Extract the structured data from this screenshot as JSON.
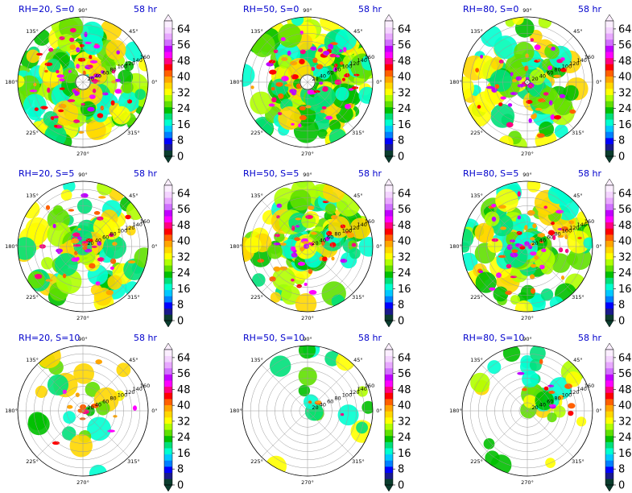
{
  "chart_data": {
    "type": "heatmap",
    "projection": "polar",
    "grid": true,
    "time_label": "58 hr",
    "angle_labels": [
      "90°",
      "45°",
      "0°",
      "315°",
      "270°",
      "225°",
      "180°",
      "135°"
    ],
    "radial_labels": [
      "20",
      "40",
      "60",
      "80",
      "100",
      "120",
      "140",
      "160"
    ],
    "colorbar": {
      "ticks": [
        "0",
        "8",
        "16",
        "24",
        "32",
        "40",
        "48",
        "56",
        "64"
      ],
      "range": [
        0,
        68
      ],
      "extend": "both",
      "colors": [
        "#0b3d2e",
        "#1a1a8c",
        "#0000ff",
        "#0080ff",
        "#00c8ff",
        "#00ffd0",
        "#00e07a",
        "#00c000",
        "#60e000",
        "#b0ff00",
        "#ffff00",
        "#ffd700",
        "#ffa500",
        "#ff6000",
        "#ff0000",
        "#ff0080",
        "#ff00ff",
        "#c000ff",
        "#d070ff",
        "#e8a8ff",
        "#f4d4ff",
        "#fbeeff"
      ]
    },
    "panels": [
      {
        "title": "RH=20, S=0",
        "time": "58 hr",
        "coverage": 0.95,
        "intensity": 0.65,
        "inner_hole": 0.14,
        "sector": null
      },
      {
        "title": "RH=50, S=0",
        "time": "58 hr",
        "coverage": 1.0,
        "intensity": 0.55,
        "inner_hole": 0.14,
        "sector": null
      },
      {
        "title": "RH=80, S=0",
        "time": "58 hr",
        "coverage": 0.7,
        "intensity": 0.75,
        "inner_hole": 0.05,
        "sector": null
      },
      {
        "title": "RH=20, S=5",
        "time": "58 hr",
        "coverage": 0.7,
        "intensity": 0.55,
        "inner_hole": 0.0,
        "sector": null
      },
      {
        "title": "RH=50, S=5",
        "time": "58 hr",
        "coverage": 0.85,
        "intensity": 0.55,
        "inner_hole": 0.0,
        "sector": null
      },
      {
        "title": "RH=80, S=5",
        "time": "58 hr",
        "coverage": 0.85,
        "intensity": 0.65,
        "inner_hole": 0.0,
        "sector": null
      },
      {
        "title": "RH=20, S=10",
        "time": "58 hr",
        "coverage": 0.25,
        "intensity": 0.45,
        "inner_hole": 0.0,
        "sector": null
      },
      {
        "title": "RH=50, S=10",
        "time": "58 hr",
        "coverage": 0.45,
        "intensity": 0.65,
        "inner_hole": 0.0,
        "sector": "north-east"
      },
      {
        "title": "RH=80, S=10",
        "time": "58 hr",
        "coverage": 0.55,
        "intensity": 0.65,
        "inner_hole": 0.0,
        "sector": "north-east"
      }
    ]
  }
}
